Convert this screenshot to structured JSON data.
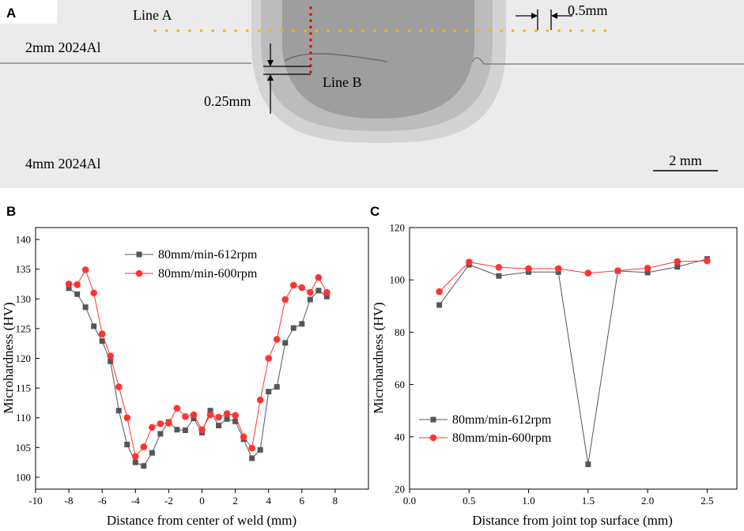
{
  "panel_a": {
    "letter": "A",
    "line_a_label": "Line A",
    "line_b_label": "Line B",
    "gap_label": "0.5mm",
    "offset_label": "0.25mm",
    "top_sheet_label": "2mm 2024Al",
    "bottom_sheet_label": "4mm 2024Al",
    "scale_label": "2 mm",
    "colors": {
      "line_a": "#f5b800",
      "line_b": "#e01010",
      "background": "#ebebeb"
    }
  },
  "chart_data": [
    {
      "panel": "B",
      "type": "line",
      "title": "",
      "xlabel": "Distance from center of weld (mm)",
      "ylabel": "Microhardness (HV)",
      "xlim": [
        -10,
        10
      ],
      "ylim": [
        98,
        142
      ],
      "xticks": [
        -10,
        -8,
        -6,
        -4,
        -2,
        0,
        2,
        4,
        6,
        8
      ],
      "yticks": [
        100,
        105,
        110,
        115,
        120,
        125,
        130,
        135,
        140
      ],
      "legend_position": "top-center",
      "series": [
        {
          "name": "80mm/min-612rpm",
          "color": "#555555",
          "marker": "square",
          "x": [
            -8,
            -7.5,
            -7,
            -6.5,
            -6,
            -5.5,
            -5,
            -4.5,
            -4,
            -3.5,
            -3,
            -2.5,
            -2,
            -1.5,
            -1,
            -0.5,
            0,
            0.5,
            1,
            1.5,
            2,
            2.5,
            3,
            3.5,
            4,
            4.5,
            5,
            5.5,
            6,
            6.5,
            7,
            7.5
          ],
          "y": [
            131.8,
            130.8,
            128.6,
            125.4,
            122.9,
            119.5,
            111.2,
            105.5,
            102.5,
            101.9,
            104.1,
            107.3,
            109.3,
            108.0,
            107.9,
            109.9,
            107.5,
            111.2,
            108.7,
            109.8,
            109.4,
            106.4,
            103.2,
            104.6,
            114.4,
            115.2,
            122.6,
            125.1,
            125.8,
            129.9,
            131.4,
            130.4
          ]
        },
        {
          "name": "80mm/min-600rpm",
          "color": "#ff3333",
          "marker": "circle",
          "x": [
            -8,
            -7.5,
            -7,
            -6.5,
            -6,
            -5.5,
            -5,
            -4.5,
            -4,
            -3.5,
            -3,
            -2.5,
            -2,
            -1.5,
            -1,
            -0.5,
            0,
            0.5,
            1,
            1.5,
            2,
            2.5,
            3,
            3.5,
            4,
            4.5,
            5,
            5.5,
            6,
            6.5,
            7,
            7.5
          ],
          "y": [
            132.5,
            132.4,
            134.9,
            131.0,
            124.1,
            120.4,
            115.2,
            110.0,
            103.5,
            105.1,
            108.4,
            109.0,
            109.1,
            111.6,
            110.2,
            110.5,
            108.0,
            110.5,
            110.1,
            110.7,
            110.4,
            106.8,
            104.9,
            113.0,
            120.0,
            123.2,
            129.9,
            132.3,
            131.9,
            131.1,
            133.6,
            131.1
          ]
        }
      ]
    },
    {
      "panel": "C",
      "type": "line",
      "title": "",
      "xlabel": "Distance from joint top surface (mm)",
      "ylabel": "Microhardness (HV)",
      "xlim": [
        0,
        2.75
      ],
      "ylim": [
        20,
        120
      ],
      "xticks": [
        0.0,
        0.5,
        1.0,
        1.5,
        2.0,
        2.5
      ],
      "xtick_labels": [
        "0.0",
        "0.5",
        "1.0",
        "1.5",
        "2.0",
        "2.5"
      ],
      "yticks": [
        20,
        40,
        60,
        80,
        100,
        120
      ],
      "legend_position": "bottom-left",
      "series": [
        {
          "name": "80mm/min-612rpm",
          "color": "#555555",
          "marker": "square",
          "x": [
            0.25,
            0.5,
            0.75,
            1.0,
            1.25,
            1.5,
            1.75,
            2.0,
            2.25,
            2.5
          ],
          "y": [
            90.4,
            105.8,
            101.5,
            103.0,
            103.0,
            29.5,
            103.4,
            102.8,
            105.0,
            108.0
          ]
        },
        {
          "name": "80mm/min-600rpm",
          "color": "#ff3333",
          "marker": "circle",
          "x": [
            0.25,
            0.5,
            0.75,
            1.0,
            1.25,
            1.5,
            1.75,
            2.0,
            2.25,
            2.5
          ],
          "y": [
            95.5,
            106.8,
            104.8,
            104.3,
            104.3,
            102.6,
            103.5,
            104.5,
            107.0,
            107.3
          ]
        }
      ]
    }
  ]
}
